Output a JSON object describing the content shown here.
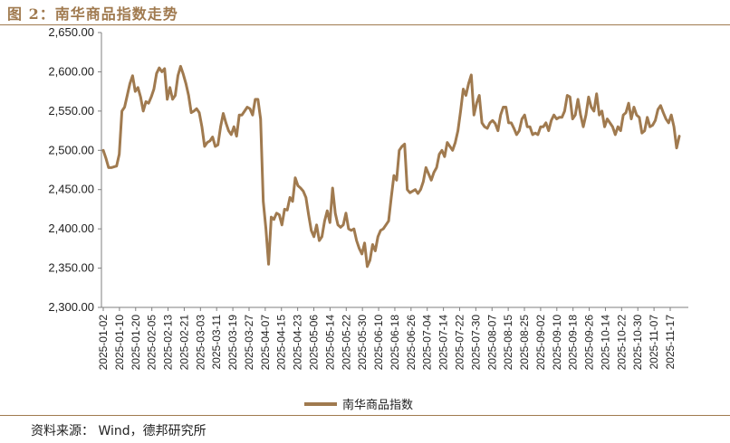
{
  "header": {
    "title": "图 2：南华商品指数走势"
  },
  "footer": {
    "source": "资料来源：  Wind，德邦研究所"
  },
  "colors": {
    "series": "#a07a4f",
    "accent": "#a07a4f"
  },
  "chart_data": {
    "type": "line",
    "title": "",
    "xlabel": "",
    "ylabel": "",
    "ylim": [
      2300,
      2650
    ],
    "yticks": [
      "2,300.00",
      "2,350.00",
      "2,400.00",
      "2,450.00",
      "2,500.00",
      "2,550.00",
      "2,600.00",
      "2,650.00"
    ],
    "ytick_values": [
      2300,
      2350,
      2400,
      2450,
      2500,
      2550,
      2600,
      2650
    ],
    "xticks": [
      "2025-01-02",
      "2025-01-10",
      "2025-01-20",
      "2025-02-05",
      "2025-02-13",
      "2025-02-21",
      "2025-03-03",
      "2025-03-11",
      "2025-03-19",
      "2025-03-27",
      "2025-04-07",
      "2025-04-15",
      "2025-04-23",
      "2025-05-06",
      "2025-05-14",
      "2025-05-22",
      "2025-05-30",
      "2025-06-10",
      "2025-06-18",
      "2025-06-26",
      "2025-07-04",
      "2025-07-14",
      "2025-07-22",
      "2025-07-30",
      "2025-08-07",
      "2025-08-15",
      "2025-08-25",
      "2025-09-02",
      "2025-09-10",
      "2025-09-18",
      "2025-09-26",
      "2025-10-14",
      "2025-10-22",
      "2025-10-30",
      "2025-11-07",
      "2025-11-17"
    ],
    "legend_position": "bottom-center",
    "grid": false,
    "series": [
      {
        "name": "南华商品指数",
        "values": [
          2500,
          2490,
          2478,
          2478,
          2479,
          2480,
          2495,
          2550,
          2555,
          2570,
          2585,
          2595,
          2575,
          2580,
          2568,
          2550,
          2562,
          2560,
          2568,
          2578,
          2598,
          2605,
          2600,
          2604,
          2565,
          2580,
          2565,
          2570,
          2595,
          2607,
          2597,
          2585,
          2570,
          2548,
          2550,
          2553,
          2548,
          2530,
          2505,
          2510,
          2512,
          2517,
          2505,
          2507,
          2530,
          2547,
          2535,
          2525,
          2520,
          2530,
          2518,
          2545,
          2545,
          2550,
          2555,
          2553,
          2545,
          2565,
          2565,
          2540,
          2435,
          2400,
          2355,
          2415,
          2412,
          2420,
          2418,
          2405,
          2425,
          2424,
          2440,
          2435,
          2465,
          2455,
          2452,
          2448,
          2440,
          2418,
          2398,
          2390,
          2405,
          2385,
          2390,
          2410,
          2423,
          2408,
          2452,
          2420,
          2405,
          2402,
          2405,
          2420,
          2400,
          2398,
          2400,
          2385,
          2375,
          2368,
          2382,
          2352,
          2360,
          2380,
          2372,
          2390,
          2398,
          2400,
          2405,
          2410,
          2440,
          2468,
          2462,
          2500,
          2505,
          2508,
          2450,
          2446,
          2448,
          2450,
          2445,
          2450,
          2460,
          2478,
          2470,
          2462,
          2472,
          2478,
          2495,
          2500,
          2492,
          2510,
          2505,
          2500,
          2510,
          2525,
          2550,
          2578,
          2570,
          2585,
          2596,
          2545,
          2560,
          2570,
          2535,
          2530,
          2528,
          2535,
          2538,
          2534,
          2525,
          2545,
          2555,
          2555,
          2535,
          2535,
          2528,
          2520,
          2525,
          2540,
          2545,
          2530,
          2530,
          2520,
          2522,
          2520,
          2530,
          2530,
          2535,
          2525,
          2538,
          2545,
          2540,
          2542,
          2542,
          2550,
          2570,
          2568,
          2540,
          2545,
          2565,
          2545,
          2530,
          2545,
          2568,
          2555,
          2550,
          2572,
          2545,
          2550,
          2530,
          2540,
          2535,
          2530,
          2520,
          2530,
          2525,
          2545,
          2548,
          2560,
          2540,
          2555,
          2545,
          2542,
          2522,
          2525,
          2542,
          2530,
          2532,
          2538,
          2552,
          2557,
          2548,
          2540,
          2535,
          2545,
          2530,
          2503,
          2518
        ]
      }
    ]
  }
}
